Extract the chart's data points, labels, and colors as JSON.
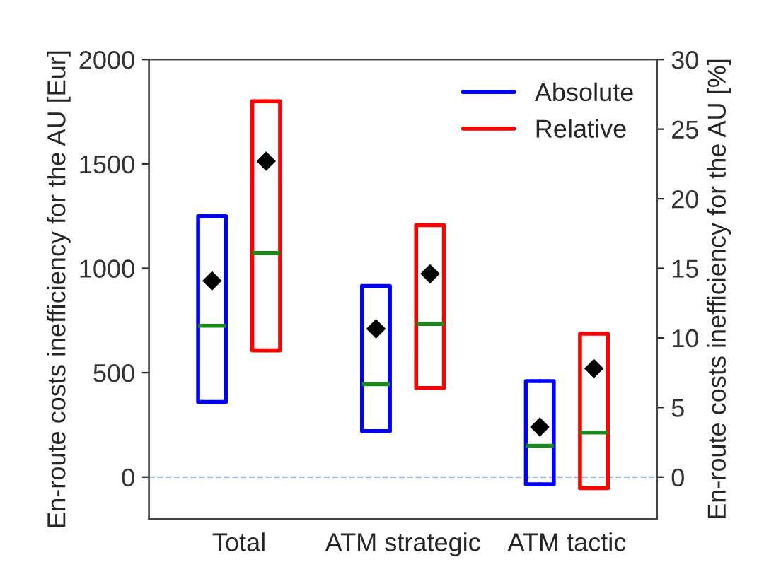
{
  "chart_data": {
    "type": "box",
    "ylabel": "En-route costs inefficiency for the AU [Eur]",
    "y2label": "En-route costs inefficiency for the AU [%]",
    "categories": [
      "Total",
      "ATM strategic",
      "ATM tactic"
    ],
    "series": [
      {
        "name": "Absolute",
        "color": "#0000ff",
        "axis": "y",
        "boxes": [
          {
            "low": 360,
            "q1": 360,
            "median": 725,
            "q3": 1250,
            "high": 1250,
            "mean": 940
          },
          {
            "low": 220,
            "q1": 220,
            "median": 445,
            "q3": 915,
            "high": 915,
            "mean": 710
          },
          {
            "low": -35,
            "q1": -35,
            "median": 150,
            "q3": 460,
            "high": 460,
            "mean": 240
          }
        ]
      },
      {
        "name": "Relative",
        "color": "#ff0000",
        "axis": "y2",
        "boxes": [
          {
            "low": 9.1,
            "q1": 9.1,
            "median": 16.1,
            "q3": 27,
            "high": 27,
            "mean": 22.7
          },
          {
            "low": 6.4,
            "q1": 6.4,
            "median": 11,
            "q3": 18.1,
            "high": 18.1,
            "mean": 14.6
          },
          {
            "low": -0.8,
            "q1": -0.8,
            "median": 3.2,
            "q3": 10.3,
            "high": 10.3,
            "mean": 7.8
          }
        ]
      }
    ],
    "ylim": [
      -200,
      2000
    ],
    "yticks": [
      0,
      500,
      1000,
      1500,
      2000
    ],
    "y2lim": [
      -3,
      30
    ],
    "y2ticks": [
      0,
      5,
      10,
      15,
      20,
      25,
      30
    ],
    "ref_lines": [
      {
        "axis": "y",
        "value": 0,
        "color": "#9db4dd",
        "line_style": "dashed"
      }
    ],
    "grid": false,
    "legend": "top right"
  }
}
